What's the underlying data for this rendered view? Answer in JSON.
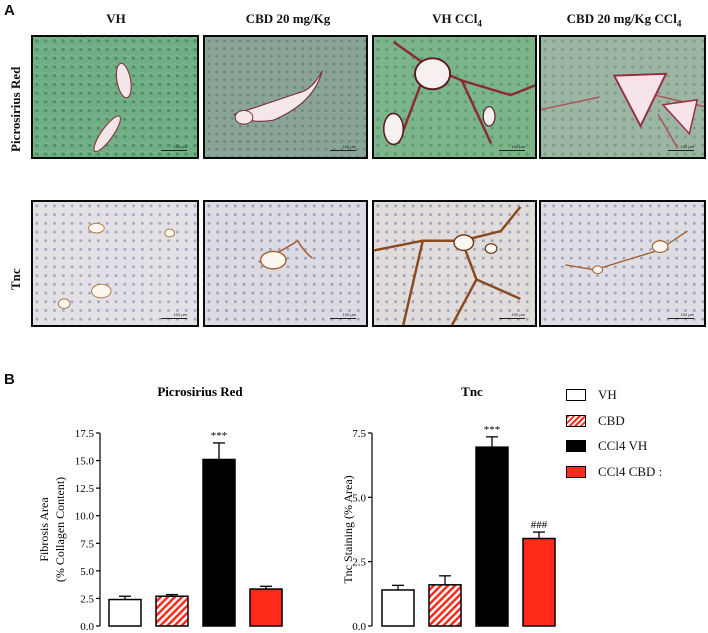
{
  "panels": {
    "a": "A",
    "b": "B"
  },
  "micrographs": {
    "columns": [
      "VH",
      "CBD 20 mg/Kg",
      "VH CCl4",
      "CBD 20 mg/Kg CCl4"
    ],
    "rows": [
      "Picrosirius Red",
      "Tnc"
    ],
    "scale_bar_text": "100 µm"
  },
  "legend": [
    {
      "label": "VH",
      "color": "#ffffff",
      "pattern": "solid"
    },
    {
      "label": "CBD",
      "color": "#ff2a1a",
      "pattern": "hatched"
    },
    {
      "label": "CCl4 VH",
      "color": "#000000",
      "pattern": "solid"
    },
    {
      "label": "CCl4 CBD :",
      "color": "#ff2a1a",
      "pattern": "solid"
    }
  ],
  "chart_data": [
    {
      "type": "bar",
      "title": "Picrosirius Red",
      "ylabel": "Fibrosis Area (% Collagen Content)",
      "ylabel_lines": [
        "Fibrosis Area",
        "(% Collagen Content)"
      ],
      "ylim": [
        0,
        17.5
      ],
      "yticks": [
        "0.0",
        "2.5",
        "5.0",
        "7.5",
        "10.0",
        "12.5",
        "15.0",
        "17.5"
      ],
      "categories": [
        "VH",
        "CBD",
        "CCl4 VH",
        "CCl4 CBD"
      ],
      "values": [
        2.4,
        2.7,
        15.1,
        3.35
      ],
      "errors": [
        0.3,
        0.15,
        1.5,
        0.25
      ],
      "annotations": [
        "",
        "",
        "***",
        ""
      ]
    },
    {
      "type": "bar",
      "title": "Tnc",
      "ylabel": "Tnc Staining (% Area)",
      "ylabel_lines": [
        "Tnc Staining (% Area)"
      ],
      "ylim": [
        0,
        7.5
      ],
      "yticks": [
        "0.0",
        "2.5",
        "5.0",
        "7.5"
      ],
      "categories": [
        "VH",
        "CBD",
        "CCl4 VH",
        "CCl4 CBD"
      ],
      "values": [
        1.4,
        1.6,
        6.95,
        3.4
      ],
      "errors": [
        0.18,
        0.35,
        0.4,
        0.25
      ],
      "annotations": [
        "",
        "",
        "***",
        "###"
      ]
    }
  ]
}
